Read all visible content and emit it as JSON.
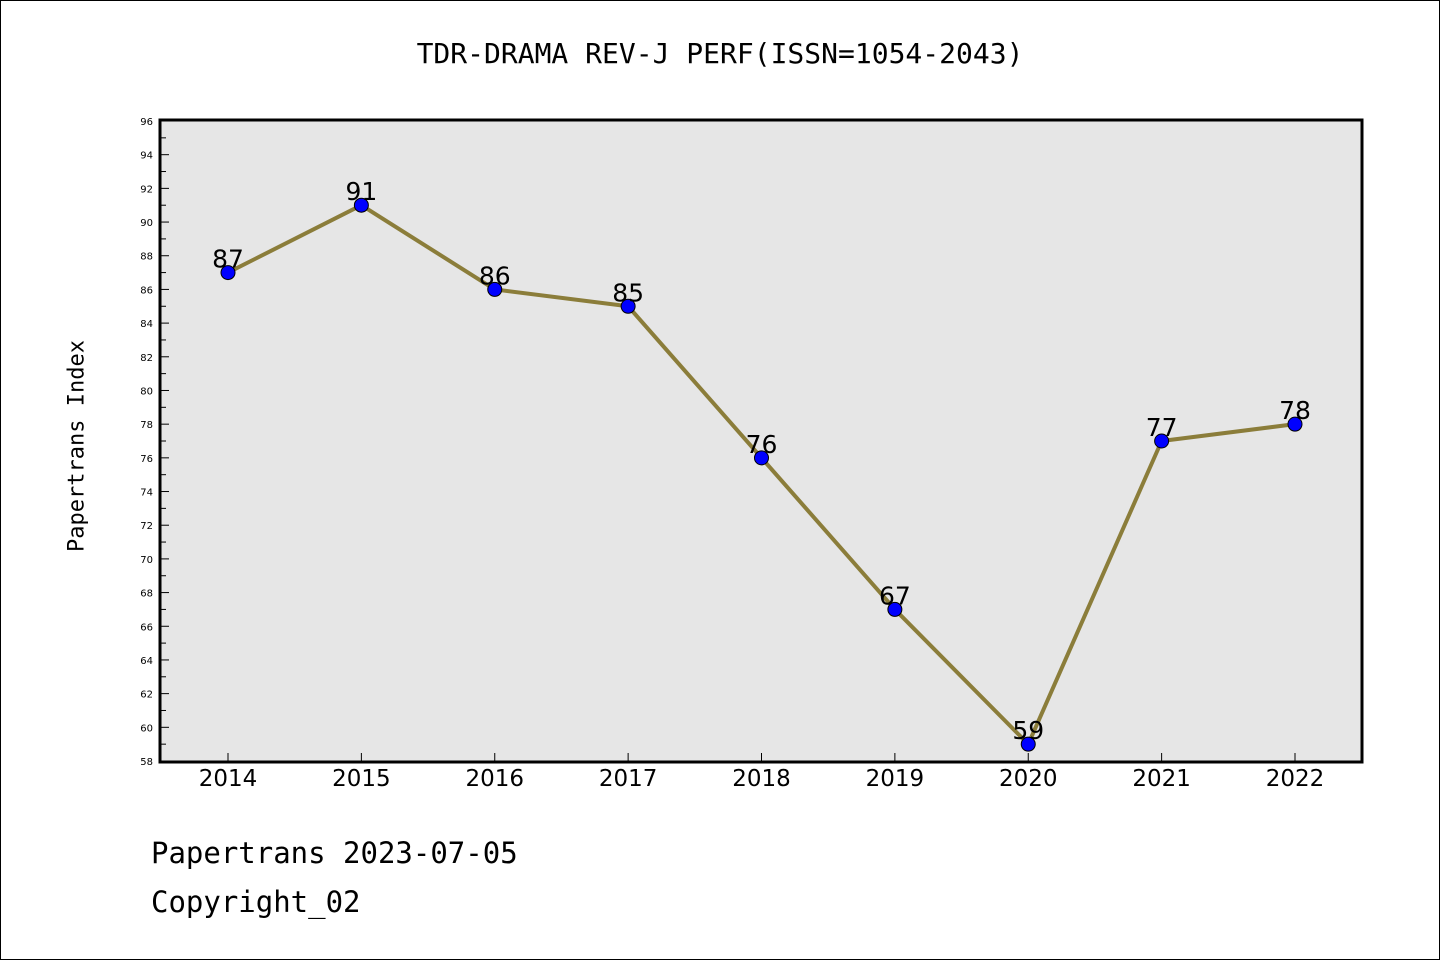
{
  "chart_data": {
    "type": "line",
    "title": "TDR-DRAMA REV-J PERF(ISSN=1054-2043)",
    "xlabel": "",
    "ylabel": "Papertrans Index",
    "x": [
      "2014",
      "2015",
      "2016",
      "2017",
      "2018",
      "2019",
      "2020",
      "2021",
      "2022"
    ],
    "series": [
      {
        "values": [
          87,
          91,
          86,
          85,
          76,
          67,
          59,
          77,
          78
        ]
      }
    ],
    "ylim": [
      58,
      96
    ],
    "yticks": [
      58,
      60,
      62,
      64,
      66,
      68,
      70,
      72,
      74,
      76,
      78,
      80,
      82,
      84,
      86,
      88,
      90,
      92,
      94,
      96
    ],
    "grid": false,
    "data_labels": true,
    "colors": {
      "line": "#8B7D3A",
      "marker": "#0000FF",
      "plot_background": "#E6E6E6"
    }
  },
  "footer": {
    "line1": "Papertrans 2023-07-05",
    "line2": "Copyright_02"
  }
}
